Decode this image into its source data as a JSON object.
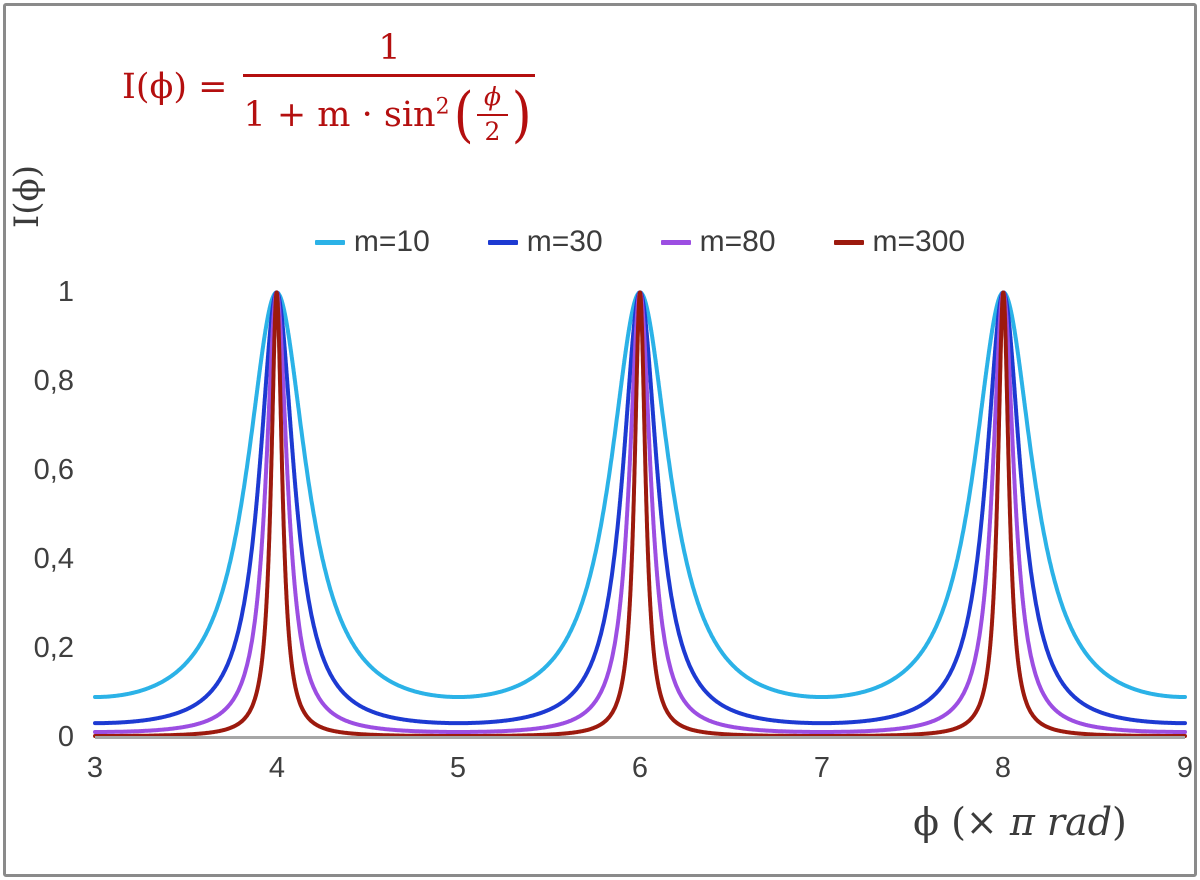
{
  "formula": {
    "lhs": "I(ϕ) =",
    "numerator": "1",
    "denominator_prefix": "1 + m · sin",
    "denominator_sup": "2",
    "open_paren": "(",
    "inner_numerator": "ϕ",
    "inner_denominator": "2",
    "close_paren": ")",
    "color": "#b40f0f"
  },
  "legend": {
    "items": [
      {
        "label": "m=10",
        "color": "#2bb2e7"
      },
      {
        "label": "m=30",
        "color": "#1d3ad2"
      },
      {
        "label": "m=80",
        "color": "#9c4ee2"
      },
      {
        "label": "m=300",
        "color": "#9c1a0e"
      }
    ]
  },
  "axes": {
    "ylabel": "I(ϕ)",
    "xlabel_prefix": "ϕ  (× ",
    "xlabel_italic": "π rad",
    "xlabel_suffix": ")",
    "y_tick_labels": [
      "1",
      "0,8",
      "0,6",
      "0,4",
      "0,2",
      "0"
    ],
    "x_tick_labels": [
      "3",
      "4",
      "5",
      "6",
      "7",
      "8",
      "9"
    ],
    "axis_color": "#a6a6a6",
    "tick_color": "#3f3f3f"
  },
  "chart_data": {
    "type": "line",
    "function": "I(phi) = 1 / (1 + m * sin^2(phi/2))",
    "x_units": "phi expressed in multiples of pi rad",
    "xlabel": "ϕ (× π rad)",
    "ylabel": "I(ϕ)",
    "xlim": [
      3,
      9
    ],
    "ylim": [
      0,
      1.6
    ],
    "x_ticks": [
      3,
      4,
      5,
      6,
      7,
      8,
      9
    ],
    "y_ticks": [
      0,
      0.2,
      0.4,
      0.6,
      0.8,
      1
    ],
    "grid": false,
    "legend_position": "top-center",
    "series": [
      {
        "name": "m=10",
        "m": 10,
        "color": "#2bb2e7",
        "peak_value": 1,
        "min_value": 0.0909
      },
      {
        "name": "m=30",
        "m": 30,
        "color": "#1d3ad2",
        "peak_value": 1,
        "min_value": 0.0323
      },
      {
        "name": "m=80",
        "m": 80,
        "color": "#9c4ee2",
        "peak_value": 1,
        "min_value": 0.0123
      },
      {
        "name": "m=300",
        "m": 300,
        "color": "#9c1a0e",
        "peak_value": 1,
        "min_value": 0.0033
      }
    ],
    "peaks_at_x": [
      4,
      6,
      8
    ],
    "minima_at_x": [
      3,
      5,
      7,
      9
    ]
  }
}
